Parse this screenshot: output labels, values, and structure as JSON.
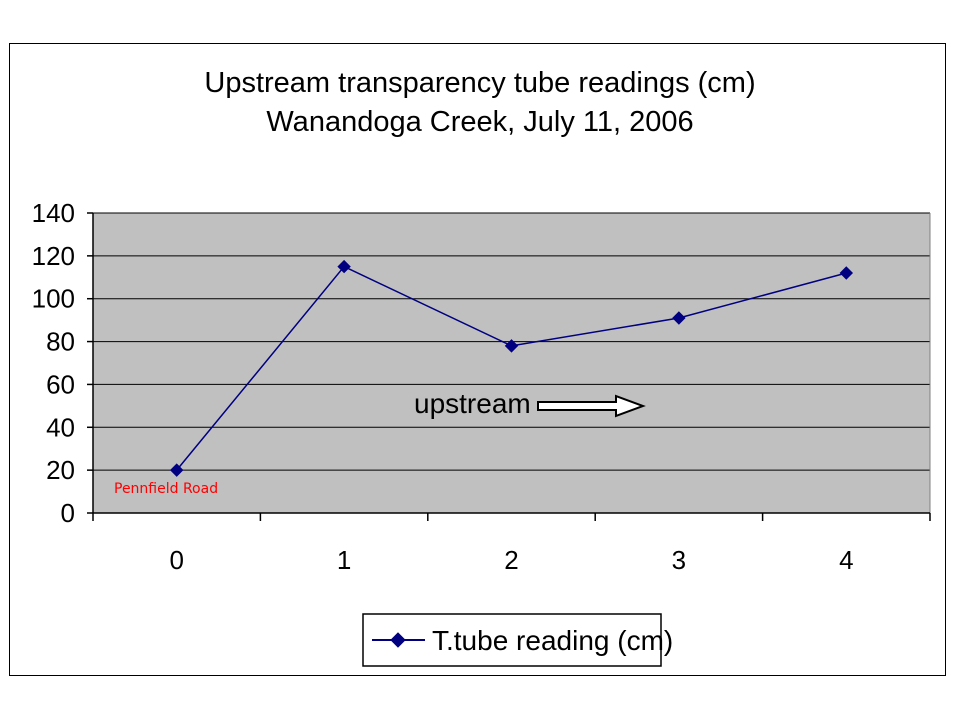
{
  "chart_data": {
    "type": "line",
    "title": "Upstream transparency tube readings (cm)",
    "subtitle": "Wanandoga Creek, July 11, 2006",
    "x": [
      0,
      1,
      2,
      3,
      4
    ],
    "categories": [
      "0",
      "1",
      "2",
      "3",
      "4"
    ],
    "series": [
      {
        "name": "T.tube reading (cm)",
        "values": [
          20,
          115,
          78,
          91,
          112
        ]
      }
    ],
    "ylim": [
      0,
      140
    ],
    "yticks": [
      0,
      20,
      40,
      60,
      80,
      100,
      120,
      140
    ],
    "ytick_labels": [
      "0",
      "20",
      "40",
      "60",
      "80",
      "100",
      "120",
      "140"
    ],
    "xlabel": "",
    "ylabel": "",
    "grid": true,
    "legend_position": "bottom",
    "annotations": {
      "direction_label": "upstream",
      "site_label": "Pennfield Road"
    },
    "colors": {
      "plot_background": "#c0c0c0",
      "series": "#000080",
      "site_label": "#ff0000",
      "gridline": "#000000"
    }
  }
}
